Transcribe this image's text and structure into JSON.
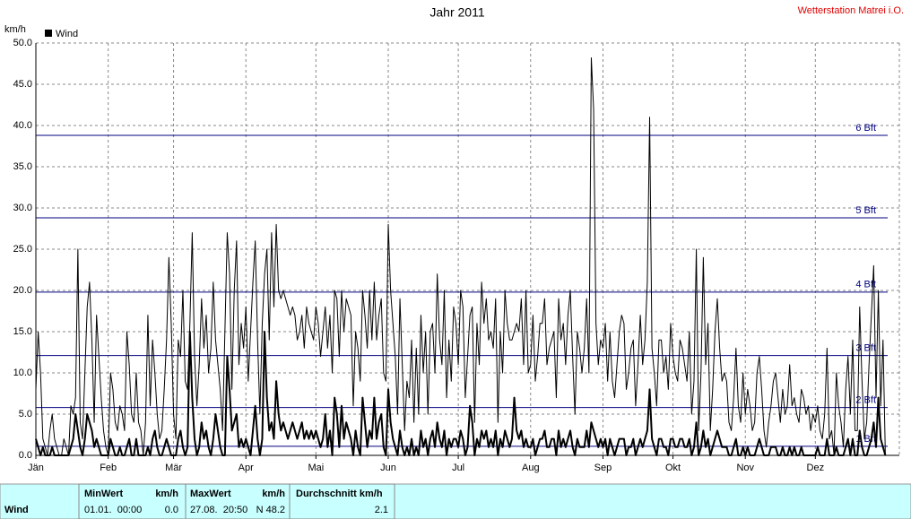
{
  "chart_data": {
    "type": "line",
    "title": "Jahr 2011",
    "station": "Wetterstation Matrei i.O.",
    "ylabel": "km/h",
    "ylim": [
      0,
      50
    ],
    "yticks": [
      {
        "value": 0,
        "label": "0.0"
      },
      {
        "value": 5,
        "label": "5.0"
      },
      {
        "value": 10,
        "label": "10.0"
      },
      {
        "value": 15,
        "label": "15.0"
      },
      {
        "value": 20,
        "label": "20.0"
      },
      {
        "value": 25,
        "label": "25.0"
      },
      {
        "value": 30,
        "label": "30.0"
      },
      {
        "value": 35,
        "label": "35.0"
      },
      {
        "value": 40,
        "label": "40.0"
      },
      {
        "value": 45,
        "label": "45.0"
      },
      {
        "value": 50,
        "label": "50.0"
      }
    ],
    "grid": true,
    "bft_color": "#000080",
    "bft_lines": [
      {
        "value": 1.1,
        "label": "1 Bft"
      },
      {
        "value": 5.8,
        "label": "2 Bft"
      },
      {
        "value": 12.1,
        "label": "3 Bft"
      },
      {
        "value": 19.8,
        "label": "4 Bft"
      },
      {
        "value": 28.8,
        "label": "5 Bft"
      },
      {
        "value": 38.8,
        "label": "6 Bft"
      }
    ],
    "categories": [
      "Jän",
      null,
      null,
      null,
      null,
      null,
      null,
      null,
      null,
      null,
      null,
      null,
      null,
      null,
      null,
      null,
      null,
      null,
      null,
      null,
      null,
      null,
      null,
      null,
      null,
      null,
      null,
      null,
      null,
      null,
      null,
      "Feb",
      null,
      null,
      null,
      null,
      null,
      null,
      null,
      null,
      null,
      null,
      null,
      null,
      null,
      null,
      null,
      null,
      null,
      null,
      null,
      null,
      null,
      null,
      null,
      null,
      null,
      null,
      null,
      "Mär",
      null,
      null,
      null,
      null,
      null,
      null,
      null,
      null,
      null,
      null,
      null,
      null,
      null,
      null,
      null,
      null,
      null,
      null,
      null,
      null,
      null,
      null,
      null,
      null,
      null,
      null,
      null,
      null,
      null,
      null,
      "Apr",
      null,
      null,
      null,
      null,
      null,
      null,
      null,
      null,
      null,
      null,
      null,
      null,
      null,
      null,
      null,
      null,
      null,
      null,
      null,
      null,
      null,
      null,
      null,
      null,
      null,
      null,
      null,
      null,
      null,
      "Mai",
      null,
      null,
      null,
      null,
      null,
      null,
      null,
      null,
      null,
      null,
      null,
      null,
      null,
      null,
      null,
      null,
      null,
      null,
      null,
      null,
      null,
      null,
      null,
      null,
      null,
      null,
      null,
      null,
      null,
      null,
      "Jun",
      null,
      null,
      null,
      null,
      null,
      null,
      null,
      null,
      null,
      null,
      null,
      null,
      null,
      null,
      null,
      null,
      null,
      null,
      null,
      null,
      null,
      null,
      null,
      null,
      null,
      null,
      null,
      null,
      null,
      "Jul",
      null,
      null,
      null,
      null,
      null,
      null,
      null,
      null,
      null,
      null,
      null,
      null,
      null,
      null,
      null,
      null,
      null,
      null,
      null,
      null,
      null,
      null,
      null,
      null,
      null,
      null,
      null,
      null,
      null,
      null,
      "Aug",
      null,
      null,
      null,
      null,
      null,
      null,
      null,
      null,
      null,
      null,
      null,
      null,
      null,
      null,
      null,
      null,
      null,
      null,
      null,
      null,
      null,
      null,
      null,
      null,
      null,
      null,
      null,
      null,
      null,
      null,
      "Sep",
      null,
      null,
      null,
      null,
      null,
      null,
      null,
      null,
      null,
      null,
      null,
      null,
      null,
      null,
      null,
      null,
      null,
      null,
      null,
      null,
      null,
      null,
      null,
      null,
      null,
      null,
      null,
      null,
      null,
      "Okt",
      null,
      null,
      null,
      null,
      null,
      null,
      null,
      null,
      null,
      null,
      null,
      null,
      null,
      null,
      null,
      null,
      null,
      null,
      null,
      null,
      null,
      null,
      null,
      null,
      null,
      null,
      null,
      null,
      null,
      null,
      "Nov",
      null,
      null,
      null,
      null,
      null,
      null,
      null,
      null,
      null,
      null,
      null,
      null,
      null,
      null,
      null,
      null,
      null,
      null,
      null,
      null,
      null,
      null,
      null,
      null,
      null,
      null,
      null,
      null,
      null,
      "Dez",
      null,
      null,
      null,
      null,
      null,
      null,
      null,
      null,
      null,
      null,
      null,
      null,
      null,
      null,
      null,
      null,
      null,
      null,
      null,
      null,
      null,
      null,
      null,
      null,
      null,
      null,
      null,
      null,
      null,
      null
    ],
    "series": [
      {
        "color": "#000000",
        "width": 1,
        "values": [
          8,
          15,
          10,
          2,
          1,
          0,
          3,
          5,
          2,
          1,
          0,
          0,
          2,
          1,
          0,
          6,
          5,
          7,
          25,
          4,
          2,
          10,
          18,
          21,
          14,
          4,
          17,
          12,
          7,
          3,
          1,
          0,
          10,
          8,
          4,
          3,
          6,
          5,
          3,
          15,
          11,
          5,
          4,
          10,
          4,
          3,
          0,
          4,
          17,
          6,
          14,
          10,
          5,
          2,
          3,
          8,
          14,
          24,
          16,
          5,
          2,
          14,
          12,
          20,
          9,
          8,
          16,
          27,
          12,
          6,
          11,
          19,
          13,
          17,
          10,
          13,
          21,
          14,
          11,
          8,
          3,
          15,
          27,
          22,
          8,
          20,
          26,
          11,
          16,
          13,
          18,
          9,
          15,
          21,
          26,
          14,
          5,
          16,
          22,
          25,
          14,
          27,
          18,
          28,
          20,
          19,
          20,
          19,
          18,
          17,
          18,
          17,
          14,
          15,
          17,
          13,
          18,
          16,
          15,
          14,
          18,
          16,
          12,
          15,
          18,
          13,
          17,
          10,
          20,
          19,
          12,
          20,
          15,
          19,
          18,
          17,
          6,
          15,
          13,
          9,
          20,
          17,
          13,
          20,
          14,
          21,
          14,
          17,
          19,
          10,
          9,
          28,
          20,
          16,
          12,
          5,
          19,
          11,
          3,
          9,
          7,
          14,
          4,
          13,
          5,
          17,
          10,
          15,
          5,
          15,
          16,
          10,
          22,
          14,
          11,
          20,
          7,
          14,
          9,
          18,
          16,
          11,
          20,
          18,
          7,
          12,
          17,
          18,
          4,
          16,
          11,
          21,
          16,
          19,
          14,
          15,
          13,
          19,
          4,
          15,
          10,
          20,
          16,
          14,
          14,
          15,
          16,
          15,
          19,
          11,
          20,
          10,
          11,
          17,
          9,
          12,
          16,
          16,
          19,
          11,
          13,
          14,
          15,
          7,
          19,
          14,
          16,
          11,
          17,
          20,
          12,
          5,
          15,
          13,
          10,
          13,
          19,
          10,
          48.2,
          42,
          16,
          11,
          14,
          13,
          16,
          9,
          15,
          9,
          7,
          11,
          15,
          17,
          16,
          8,
          10,
          13,
          14,
          6,
          11,
          17,
          11,
          14,
          21,
          41,
          13,
          10,
          6,
          14,
          14,
          10,
          12,
          8,
          16,
          12,
          10,
          9,
          14,
          13,
          11,
          9,
          15,
          5,
          9,
          25,
          3,
          10,
          24,
          11,
          16,
          3,
          8,
          15,
          19,
          13,
          9,
          10,
          9,
          4,
          3,
          7,
          13,
          6,
          4,
          10,
          5,
          8,
          6,
          3,
          4,
          10,
          12,
          8,
          3,
          1,
          4,
          6,
          9,
          10,
          7,
          4,
          8,
          5,
          6,
          11,
          6,
          7,
          5,
          4,
          8,
          7,
          5,
          6,
          3,
          5,
          4,
          6,
          3,
          2,
          5,
          13,
          2,
          3,
          0,
          10,
          6,
          4,
          1,
          8,
          12,
          5,
          14,
          3,
          3,
          18,
          9,
          2,
          4,
          11,
          17,
          23,
          7,
          20,
          6,
          14,
          0
        ]
      },
      {
        "name": "Wind",
        "color": "#000000",
        "width": 2,
        "values": [
          2,
          1,
          0,
          1,
          0,
          0,
          0,
          1,
          0,
          0,
          0,
          0,
          0,
          0,
          0,
          1,
          2,
          5,
          3,
          1,
          0,
          2,
          5,
          4,
          3,
          1,
          2,
          1,
          0,
          0,
          0,
          0,
          2,
          1,
          0,
          0,
          1,
          0,
          0,
          1,
          2,
          0,
          0,
          2,
          0,
          0,
          0,
          0,
          1,
          0,
          2,
          3,
          1,
          0,
          0,
          1,
          2,
          1,
          0,
          0,
          0,
          2,
          3,
          1,
          0,
          1,
          15,
          7,
          2,
          0,
          1,
          4,
          2,
          3,
          1,
          0,
          2,
          5,
          3,
          1,
          0,
          0,
          12,
          8,
          3,
          4,
          5,
          1,
          2,
          1,
          2,
          1,
          0,
          3,
          6,
          2,
          0,
          2,
          15,
          7,
          3,
          4,
          2,
          9,
          5,
          3,
          4,
          3,
          2,
          3,
          4,
          3,
          2,
          3,
          4,
          2,
          3,
          2,
          3,
          2,
          3,
          2,
          1,
          2,
          5,
          1,
          3,
          0,
          7,
          5,
          1,
          6,
          2,
          4,
          3,
          2,
          0,
          3,
          1,
          0,
          7,
          4,
          1,
          3,
          2,
          7,
          2,
          4,
          5,
          1,
          0,
          8,
          4,
          2,
          1,
          0,
          3,
          1,
          0,
          1,
          0,
          2,
          0,
          1,
          0,
          3,
          1,
          2,
          0,
          2,
          3,
          1,
          4,
          2,
          1,
          3,
          0,
          2,
          1,
          2,
          2,
          1,
          3,
          2,
          0,
          1,
          6,
          4,
          0,
          2,
          1,
          3,
          2,
          3,
          1,
          2,
          1,
          3,
          0,
          2,
          1,
          3,
          2,
          1,
          2,
          7,
          3,
          2,
          3,
          1,
          2,
          1,
          1,
          2,
          0,
          1,
          2,
          2,
          3,
          1,
          1,
          2,
          2,
          0,
          3,
          1,
          2,
          1,
          2,
          3,
          1,
          0,
          2,
          1,
          1,
          1,
          3,
          1,
          4,
          3,
          2,
          1,
          2,
          1,
          2,
          0,
          2,
          1,
          0,
          1,
          2,
          2,
          2,
          0,
          1,
          1,
          2,
          0,
          1,
          2,
          1,
          2,
          3,
          8,
          2,
          1,
          0,
          2,
          2,
          1,
          1,
          0,
          2,
          2,
          1,
          1,
          2,
          2,
          1,
          1,
          2,
          0,
          1,
          4,
          0,
          1,
          3,
          1,
          2,
          0,
          1,
          2,
          3,
          2,
          1,
          1,
          1,
          0,
          0,
          1,
          2,
          0,
          0,
          1,
          0,
          1,
          0,
          0,
          0,
          1,
          2,
          1,
          0,
          0,
          0,
          1,
          1,
          1,
          0,
          0,
          1,
          0,
          0,
          1,
          0,
          1,
          0,
          0,
          1,
          0,
          0,
          0,
          0,
          0,
          0,
          1,
          0,
          0,
          0,
          2,
          0,
          0,
          0,
          1,
          0,
          0,
          0,
          1,
          2,
          0,
          2,
          0,
          0,
          3,
          1,
          0,
          0,
          1,
          2,
          4,
          1,
          7,
          2,
          1,
          0
        ]
      }
    ]
  },
  "stats": {
    "name": "Wind",
    "min": {
      "title": "MinWert",
      "unit": "km/h",
      "time": "01.01.  00:00",
      "value": "0.0"
    },
    "max": {
      "title": "MaxWert",
      "unit": "km/h",
      "time": "27.08.  20:50",
      "value": "N 48.2"
    },
    "avg": {
      "title": "Durchschnitt km/h",
      "value": "2.1"
    }
  }
}
